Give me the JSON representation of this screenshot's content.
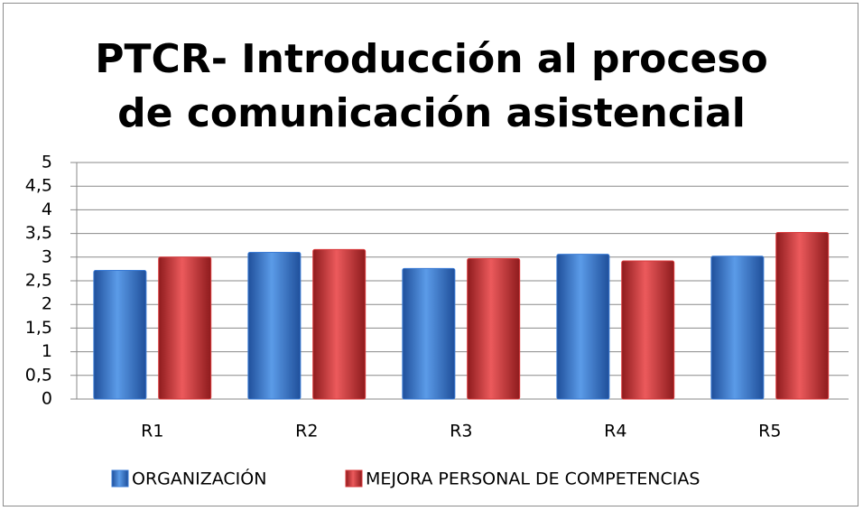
{
  "chart_data": {
    "type": "bar",
    "title": "PTCR- Introducción al proceso de comunicación asistencial",
    "categories": [
      "R1",
      "R2",
      "R3",
      "R4",
      "R5"
    ],
    "series": [
      {
        "name": "ORGANIZACIÓN",
        "color": "#3a7bd5",
        "values": [
          2.72,
          3.1,
          2.76,
          3.06,
          3.02
        ]
      },
      {
        "name": "MEJORA PERSONAL DE COMPETENCIAS",
        "color": "#d9393b",
        "values": [
          3.0,
          3.16,
          2.97,
          2.92,
          3.52
        ]
      }
    ],
    "ylim": [
      0,
      5
    ],
    "yticks": [
      0,
      {
        "value": 0.5,
        "label": "0,5"
      },
      1,
      {
        "value": 1.5,
        "label": "1,5"
      },
      2,
      {
        "value": 2.5,
        "label": "2,5"
      },
      3,
      {
        "value": 3.5,
        "label": "3,5"
      },
      4,
      {
        "value": 4.5,
        "label": "4,5"
      },
      5
    ],
    "grid": true,
    "legend": "bottom"
  }
}
